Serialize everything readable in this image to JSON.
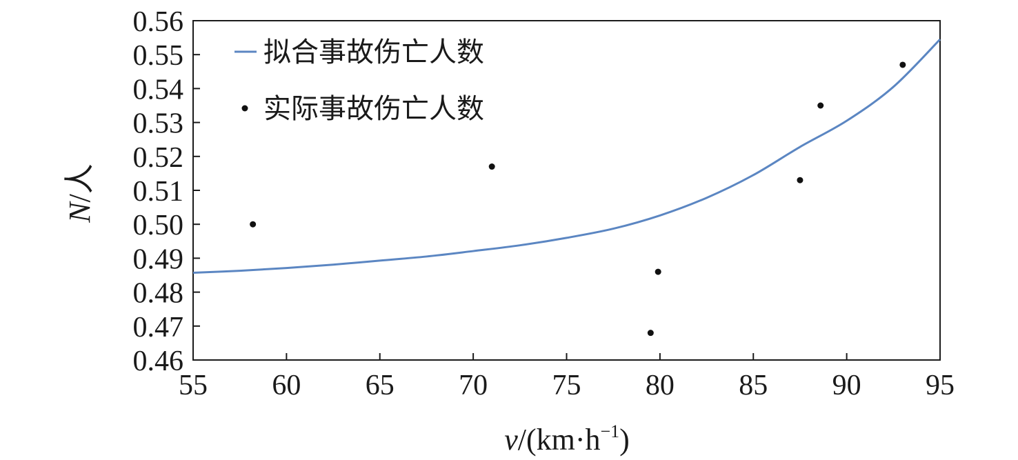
{
  "chart_data": {
    "type": "scatter",
    "xlabel_var": "v",
    "xlabel_unit": "/(km·h",
    "xlabel_exp": "−1",
    "xlabel_close": ")",
    "ylabel_var": "N",
    "ylabel_unit": "/人",
    "xlim": [
      55,
      95
    ],
    "ylim": [
      0.46,
      0.56
    ],
    "xticks": [
      55,
      60,
      65,
      70,
      75,
      80,
      85,
      90,
      95
    ],
    "yticks": [
      "0.46",
      "0.47",
      "0.48",
      "0.49",
      "0.50",
      "0.51",
      "0.52",
      "0.53",
      "0.54",
      "0.55",
      "0.56"
    ],
    "grid": false,
    "legend_position": "top-left",
    "series": [
      {
        "name": "拟合事故伤亡人数",
        "kind": "line",
        "color": "#5b86c2",
        "x": [
          55,
          57.5,
          60,
          62.5,
          65,
          67.5,
          70,
          72.5,
          75,
          77.5,
          80,
          82.5,
          85,
          87.5,
          90,
          92.5,
          95
        ],
        "y": [
          0.4857,
          0.4863,
          0.4871,
          0.4881,
          0.4893,
          0.4905,
          0.4921,
          0.4938,
          0.496,
          0.4987,
          0.5026,
          0.5078,
          0.5145,
          0.5228,
          0.5305,
          0.5405,
          0.5545
        ]
      },
      {
        "name": "实际事故伤亡人数",
        "kind": "scatter",
        "color": "#111111",
        "x": [
          58.2,
          71.0,
          79.5,
          79.9,
          87.5,
          88.6,
          93.0
        ],
        "y": [
          0.5,
          0.517,
          0.468,
          0.486,
          0.513,
          0.535,
          0.547
        ]
      }
    ]
  }
}
